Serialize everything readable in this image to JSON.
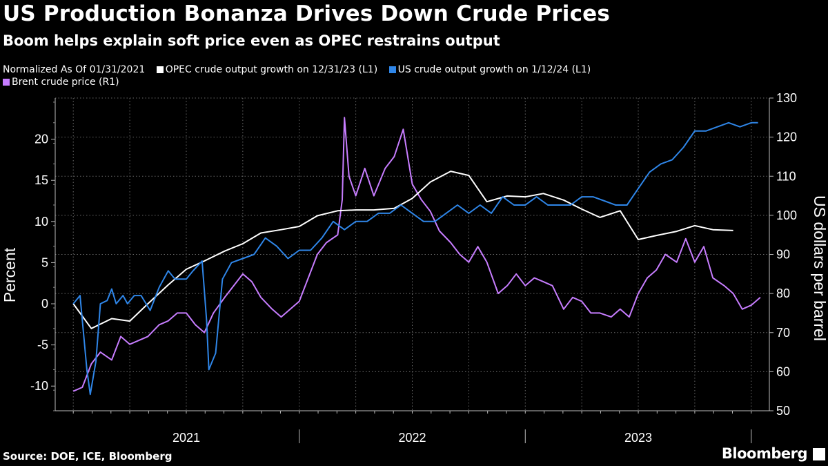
{
  "title": "US Production Bonanza Drives Down Crude Prices",
  "subtitle": "Boom helps explain soft price even as OPEC restrains output",
  "legend": [
    {
      "label": "Normalized As Of 01/31/2021",
      "color": null
    },
    {
      "label": "OPEC crude output growth on 12/31/23 (L1)",
      "color": "#ffffff"
    },
    {
      "label": "US crude output growth on 1/12/24 (L1)",
      "color": "#2f86e8"
    },
    {
      "label": "Brent crude price (R1)",
      "color": "#c77dff"
    }
  ],
  "source": "Source: DOE, ICE, Bloomberg",
  "brand": "Bloomberg",
  "chart_data": {
    "type": "line",
    "x_unit": "decimal year",
    "xlim": [
      2020.92,
      2024.08
    ],
    "ylim_left": [
      -13,
      25
    ],
    "ylim_right": [
      50,
      130
    ],
    "left_ticks": [
      -10,
      -5,
      0,
      5,
      10,
      15,
      20
    ],
    "left_tick_labels": [
      "-10",
      "-5",
      "0",
      "5",
      "10",
      "15",
      "20"
    ],
    "right_ticks": [
      50,
      60,
      70,
      80,
      90,
      100,
      110,
      120,
      130
    ],
    "right_tick_labels": [
      "50",
      "60",
      "70",
      "80",
      "90",
      "100",
      "110",
      "120",
      "130"
    ],
    "ylabel_left": "Percent",
    "ylabel_right": "US dollars per barrel",
    "year_labels": [
      {
        "x": 2021.5,
        "label": "2021"
      },
      {
        "x": 2022.5,
        "label": "2022"
      },
      {
        "x": 2023.5,
        "label": "2023"
      }
    ],
    "year_separators": [
      2022.0,
      2023.0,
      2024.0
    ],
    "series": [
      {
        "name": "OPEC crude output growth on 12/31/23 (L1)",
        "axis": "left",
        "color": "#ffffff",
        "points": [
          [
            2021.0,
            0
          ],
          [
            2021.08,
            -3
          ],
          [
            2021.17,
            -1.8
          ],
          [
            2021.25,
            -2.1
          ],
          [
            2021.33,
            0
          ],
          [
            2021.42,
            2.3
          ],
          [
            2021.5,
            4.2
          ],
          [
            2021.58,
            5.2
          ],
          [
            2021.67,
            6.4
          ],
          [
            2021.75,
            7.3
          ],
          [
            2021.83,
            8.6
          ],
          [
            2021.92,
            9
          ],
          [
            2022.0,
            9.4
          ],
          [
            2022.08,
            10.7
          ],
          [
            2022.17,
            11.3
          ],
          [
            2022.25,
            11.4
          ],
          [
            2022.33,
            11.4
          ],
          [
            2022.42,
            11.6
          ],
          [
            2022.5,
            12.8
          ],
          [
            2022.58,
            14.8
          ],
          [
            2022.67,
            16.1
          ],
          [
            2022.75,
            15.6
          ],
          [
            2022.83,
            12.4
          ],
          [
            2022.92,
            13.1
          ],
          [
            2023.0,
            13
          ],
          [
            2023.08,
            13.4
          ],
          [
            2023.17,
            12.6
          ],
          [
            2023.25,
            11.5
          ],
          [
            2023.33,
            10.5
          ],
          [
            2023.42,
            11.3
          ],
          [
            2023.5,
            7.8
          ],
          [
            2023.58,
            8.3
          ],
          [
            2023.67,
            8.8
          ],
          [
            2023.75,
            9.5
          ],
          [
            2023.83,
            9
          ],
          [
            2023.92,
            8.9
          ]
        ]
      },
      {
        "name": "US crude output growth on 1/12/24 (L1)",
        "axis": "left",
        "color": "#2f86e8",
        "points": [
          [
            2021.0,
            0
          ],
          [
            2021.03,
            1
          ],
          [
            2021.06,
            -8
          ],
          [
            2021.075,
            -11
          ],
          [
            2021.1,
            -7
          ],
          [
            2021.12,
            0
          ],
          [
            2021.15,
            0.4
          ],
          [
            2021.17,
            1.8
          ],
          [
            2021.19,
            0
          ],
          [
            2021.22,
            1
          ],
          [
            2021.24,
            0
          ],
          [
            2021.27,
            1
          ],
          [
            2021.3,
            1
          ],
          [
            2021.34,
            -0.8
          ],
          [
            2021.38,
            2
          ],
          [
            2021.42,
            4
          ],
          [
            2021.45,
            3
          ],
          [
            2021.5,
            3
          ],
          [
            2021.53,
            4
          ],
          [
            2021.57,
            5.2
          ],
          [
            2021.59,
            -2
          ],
          [
            2021.6,
            -8
          ],
          [
            2021.63,
            -6
          ],
          [
            2021.66,
            3
          ],
          [
            2021.7,
            5
          ],
          [
            2021.75,
            5.5
          ],
          [
            2021.8,
            6
          ],
          [
            2021.85,
            8
          ],
          [
            2021.9,
            7
          ],
          [
            2021.95,
            5.5
          ],
          [
            2022.0,
            6.5
          ],
          [
            2022.05,
            6.5
          ],
          [
            2022.1,
            8
          ],
          [
            2022.15,
            10
          ],
          [
            2022.2,
            9
          ],
          [
            2022.25,
            10
          ],
          [
            2022.3,
            10
          ],
          [
            2022.35,
            11
          ],
          [
            2022.4,
            11
          ],
          [
            2022.45,
            12
          ],
          [
            2022.5,
            11
          ],
          [
            2022.55,
            10
          ],
          [
            2022.6,
            10
          ],
          [
            2022.65,
            11
          ],
          [
            2022.7,
            12
          ],
          [
            2022.75,
            11
          ],
          [
            2022.8,
            12
          ],
          [
            2022.85,
            11
          ],
          [
            2022.9,
            13
          ],
          [
            2022.95,
            12
          ],
          [
            2023.0,
            12
          ],
          [
            2023.05,
            13
          ],
          [
            2023.1,
            12
          ],
          [
            2023.15,
            12
          ],
          [
            2023.2,
            12
          ],
          [
            2023.25,
            13
          ],
          [
            2023.3,
            13
          ],
          [
            2023.35,
            12.5
          ],
          [
            2023.4,
            12
          ],
          [
            2023.45,
            12
          ],
          [
            2023.5,
            14
          ],
          [
            2023.55,
            16
          ],
          [
            2023.6,
            17
          ],
          [
            2023.65,
            17.5
          ],
          [
            2023.7,
            19
          ],
          [
            2023.75,
            21
          ],
          [
            2023.8,
            21
          ],
          [
            2023.85,
            21.5
          ],
          [
            2023.9,
            22
          ],
          [
            2023.95,
            21.5
          ],
          [
            2024.0,
            22
          ],
          [
            2024.03,
            22
          ]
        ]
      },
      {
        "name": "Brent crude price (R1)",
        "axis": "right",
        "color": "#c77dff",
        "points": [
          [
            2021.0,
            55
          ],
          [
            2021.04,
            56
          ],
          [
            2021.08,
            62
          ],
          [
            2021.12,
            65
          ],
          [
            2021.17,
            63
          ],
          [
            2021.21,
            69
          ],
          [
            2021.25,
            67
          ],
          [
            2021.29,
            68
          ],
          [
            2021.33,
            69
          ],
          [
            2021.38,
            72
          ],
          [
            2021.42,
            73
          ],
          [
            2021.46,
            75
          ],
          [
            2021.5,
            75
          ],
          [
            2021.54,
            72
          ],
          [
            2021.58,
            70
          ],
          [
            2021.62,
            75
          ],
          [
            2021.67,
            79
          ],
          [
            2021.71,
            82
          ],
          [
            2021.75,
            85
          ],
          [
            2021.79,
            83
          ],
          [
            2021.83,
            79
          ],
          [
            2021.88,
            76
          ],
          [
            2021.92,
            74
          ],
          [
            2022.0,
            78
          ],
          [
            2022.04,
            84
          ],
          [
            2022.08,
            90
          ],
          [
            2022.12,
            93
          ],
          [
            2022.17,
            95
          ],
          [
            2022.19,
            104
          ],
          [
            2022.2,
            125
          ],
          [
            2022.22,
            110
          ],
          [
            2022.25,
            105
          ],
          [
            2022.29,
            112
          ],
          [
            2022.33,
            105
          ],
          [
            2022.38,
            112
          ],
          [
            2022.42,
            115
          ],
          [
            2022.46,
            122
          ],
          [
            2022.5,
            108
          ],
          [
            2022.54,
            104
          ],
          [
            2022.58,
            101
          ],
          [
            2022.62,
            96
          ],
          [
            2022.67,
            93
          ],
          [
            2022.71,
            90
          ],
          [
            2022.75,
            88
          ],
          [
            2022.79,
            92
          ],
          [
            2022.83,
            88
          ],
          [
            2022.88,
            80
          ],
          [
            2022.92,
            82
          ],
          [
            2022.96,
            85
          ],
          [
            2023.0,
            82
          ],
          [
            2023.04,
            84
          ],
          [
            2023.08,
            83
          ],
          [
            2023.12,
            82
          ],
          [
            2023.17,
            76
          ],
          [
            2023.21,
            79
          ],
          [
            2023.25,
            78
          ],
          [
            2023.29,
            75
          ],
          [
            2023.33,
            75
          ],
          [
            2023.38,
            74
          ],
          [
            2023.42,
            76
          ],
          [
            2023.46,
            74
          ],
          [
            2023.5,
            80
          ],
          [
            2023.54,
            84
          ],
          [
            2023.58,
            86
          ],
          [
            2023.62,
            90
          ],
          [
            2023.67,
            88
          ],
          [
            2023.71,
            94
          ],
          [
            2023.75,
            88
          ],
          [
            2023.79,
            92
          ],
          [
            2023.83,
            84
          ],
          [
            2023.88,
            82
          ],
          [
            2023.92,
            80
          ],
          [
            2023.96,
            76
          ],
          [
            2024.0,
            77
          ],
          [
            2024.04,
            79
          ]
        ]
      }
    ]
  }
}
